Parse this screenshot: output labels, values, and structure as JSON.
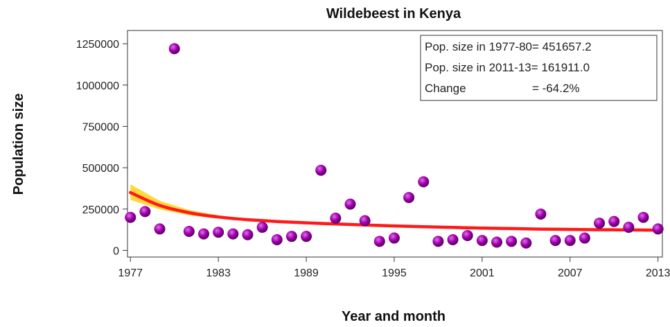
{
  "chart_data": {
    "type": "scatter",
    "title": "Wildebeest in Kenya",
    "xlabel": "Year and month",
    "ylabel": "Population size",
    "xlim": [
      1976.8,
      2013.3
    ],
    "ylim": [
      -40000,
      1330000
    ],
    "x_ticks": [
      1977,
      1983,
      1989,
      1995,
      2001,
      2007,
      2013
    ],
    "y_ticks": [
      0,
      250000,
      500000,
      750000,
      1000000,
      1250000
    ],
    "y_tick_labels": [
      "0",
      "250000",
      "500000",
      "750000",
      "1000000",
      "1250000"
    ],
    "grid": false,
    "colors": {
      "points": "#a000a8",
      "trend": "#ff1a1a",
      "band": "#ffd21a",
      "text": "#111111"
    },
    "series": [
      {
        "points": [
          {
            "x": 1977,
            "y": 200000
          },
          {
            "x": 1978,
            "y": 235000
          },
          {
            "x": 1979,
            "y": 130000
          },
          {
            "x": 1980,
            "y": 1220000
          },
          {
            "x": 1981,
            "y": 115000
          },
          {
            "x": 1982,
            "y": 100000
          },
          {
            "x": 1983,
            "y": 110000
          },
          {
            "x": 1984,
            "y": 100000
          },
          {
            "x": 1985,
            "y": 95000
          },
          {
            "x": 1986,
            "y": 140000
          },
          {
            "x": 1987,
            "y": 65000
          },
          {
            "x": 1988,
            "y": 85000
          },
          {
            "x": 1989,
            "y": 85000
          },
          {
            "x": 1990,
            "y": 485000
          },
          {
            "x": 1991,
            "y": 195000
          },
          {
            "x": 1992,
            "y": 280000
          },
          {
            "x": 1993,
            "y": 180000
          },
          {
            "x": 1994,
            "y": 55000
          },
          {
            "x": 1995,
            "y": 75000
          },
          {
            "x": 1996,
            "y": 320000
          },
          {
            "x": 1997,
            "y": 415000
          },
          {
            "x": 1998,
            "y": 55000
          },
          {
            "x": 1999,
            "y": 65000
          },
          {
            "x": 2000,
            "y": 90000
          },
          {
            "x": 2001,
            "y": 60000
          },
          {
            "x": 2002,
            "y": 50000
          },
          {
            "x": 2003,
            "y": 55000
          },
          {
            "x": 2004,
            "y": 45000
          },
          {
            "x": 2005,
            "y": 220000
          },
          {
            "x": 2006,
            "y": 60000
          },
          {
            "x": 2007,
            "y": 60000
          },
          {
            "x": 2008,
            "y": 75000
          },
          {
            "x": 2009,
            "y": 165000
          },
          {
            "x": 2010,
            "y": 175000
          },
          {
            "x": 2011,
            "y": 140000
          },
          {
            "x": 2012,
            "y": 200000
          },
          {
            "x": 2013,
            "y": 130000
          }
        ]
      }
    ],
    "trend": {
      "x": [
        1977,
        1979,
        1981,
        1983,
        1985,
        1987,
        1989,
        1991,
        1993,
        1995,
        1997,
        1999,
        2001,
        2003,
        2005,
        2007,
        2009,
        2011,
        2013
      ],
      "y": [
        350000,
        272000,
        228000,
        202000,
        186000,
        175000,
        167000,
        160000,
        154000,
        148000,
        143000,
        139000,
        135000,
        132000,
        129000,
        127000,
        125000,
        124000,
        122000
      ],
      "band_upper": [
        400000,
        300000,
        245000,
        212000,
        193000,
        181000,
        172000,
        165000,
        159000,
        153000,
        148000,
        144000,
        140000,
        137000,
        134000,
        132000,
        131000,
        131000,
        132000
      ],
      "band_lower": [
        305000,
        248000,
        212000,
        192000,
        179000,
        169000,
        162000,
        155000,
        149000,
        143000,
        138000,
        134000,
        130000,
        127000,
        124000,
        122000,
        119000,
        117000,
        112000
      ]
    },
    "annotation": {
      "line1": "Pop. size in 1977-80= 451657.2",
      "line2": "Pop. size in 2011-13= 161911.0",
      "line3_label": "Change",
      "line3_value": "= -64.2%"
    }
  }
}
